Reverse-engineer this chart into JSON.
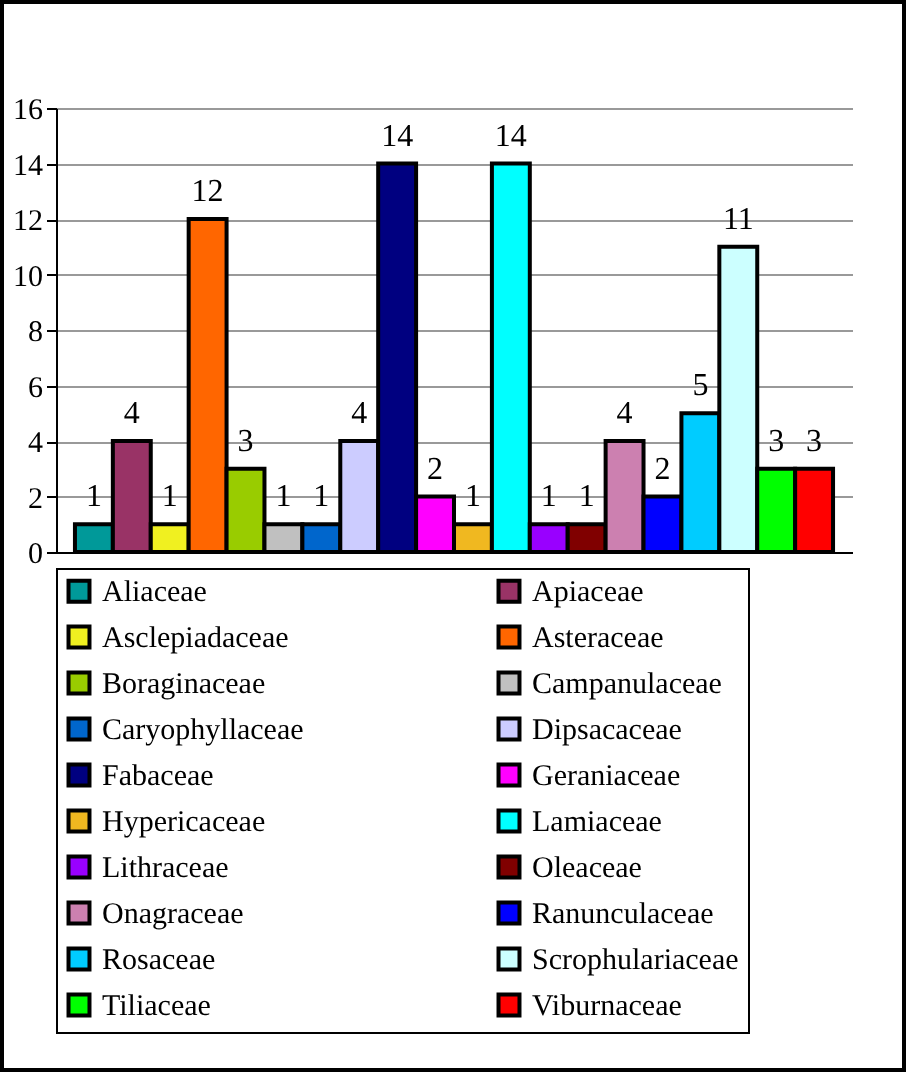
{
  "chart_data": {
    "type": "bar",
    "categories": [
      null
    ],
    "ylim": [
      0,
      16
    ],
    "yticks": [
      0,
      2,
      4,
      6,
      8,
      10,
      12,
      14,
      16
    ],
    "grid": "y",
    "legend": "bottom",
    "data_labels": true,
    "tick_labels": "y",
    "series": [
      {
        "name": "Aliaceae",
        "color": "#009999",
        "values": [
          1
        ]
      },
      {
        "name": "Apiaceae",
        "color": "#993366",
        "values": [
          4
        ]
      },
      {
        "name": "Asclepiadaceae",
        "color": "#f0f020",
        "values": [
          1
        ]
      },
      {
        "name": "Asteraceae",
        "color": "#ff6600",
        "values": [
          12
        ]
      },
      {
        "name": "Boraginaceae",
        "color": "#99cc00",
        "values": [
          3
        ]
      },
      {
        "name": "Campanulaceae",
        "color": "#c0c0c0",
        "values": [
          1
        ]
      },
      {
        "name": "Caryophyllaceae",
        "color": "#0066cc",
        "values": [
          1
        ]
      },
      {
        "name": "Dipsacaceae",
        "color": "#ccccff",
        "values": [
          4
        ]
      },
      {
        "name": "Fabaceae",
        "color": "#000080",
        "values": [
          14
        ]
      },
      {
        "name": "Geraniaceae",
        "color": "#ff00ff",
        "values": [
          2
        ]
      },
      {
        "name": "Hypericaceae",
        "color": "#f0b820",
        "values": [
          1
        ]
      },
      {
        "name": "Lamiaceae",
        "color": "#00ffff",
        "values": [
          14
        ]
      },
      {
        "name": "Lithraceae",
        "color": "#9900ff",
        "values": [
          1
        ]
      },
      {
        "name": "Oleaceae",
        "color": "#800000",
        "values": [
          1
        ]
      },
      {
        "name": "Onagraceae",
        "color": "#cc80b0",
        "values": [
          4
        ]
      },
      {
        "name": "Ranunculaceae",
        "color": "#0000ff",
        "values": [
          2
        ]
      },
      {
        "name": "Rosaceae",
        "color": "#00ccff",
        "values": [
          5
        ]
      },
      {
        "name": "Scrophulariaceae",
        "color": "#ccffff",
        "values": [
          11
        ]
      },
      {
        "name": "Tiliaceae",
        "color": "#00ff00",
        "values": [
          3
        ]
      },
      {
        "name": "Viburnaceae",
        "color": "#ff0000",
        "values": [
          3
        ]
      }
    ]
  }
}
